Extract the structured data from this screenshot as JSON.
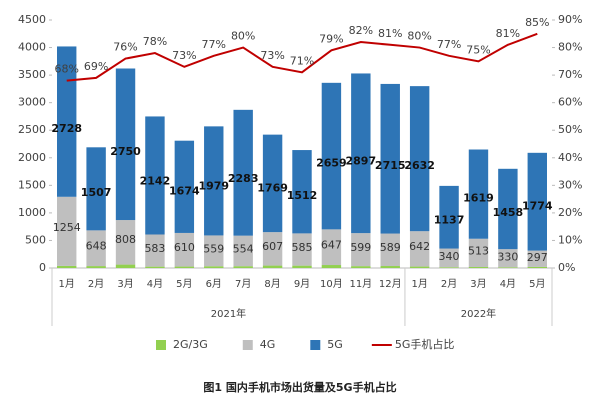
{
  "chart_data": {
    "type": "bar",
    "stacked": true,
    "caption": "图1  国内手机市场出货量及5G手机占比",
    "categories": [
      "1月",
      "2月",
      "3月",
      "4月",
      "5月",
      "6月",
      "7月",
      "8月",
      "9月",
      "10月",
      "11月",
      "12月",
      "1月",
      "2月",
      "3月",
      "4月",
      "5月"
    ],
    "groups": [
      {
        "label": "2021年",
        "span": 12
      },
      {
        "label": "2022年",
        "span": 5
      }
    ],
    "series": [
      {
        "name": "2G/3G",
        "color": "#92d050",
        "values": [
          38,
          35,
          62,
          25,
          26,
          32,
          33,
          44,
          43,
          54,
          34,
          36,
          26,
          13,
          18,
          12,
          19
        ]
      },
      {
        "name": "4G",
        "color": "#bfbfbf",
        "values": [
          1254,
          648,
          808,
          583,
          610,
          559,
          554,
          607,
          585,
          647,
          599,
          589,
          642,
          340,
          513,
          330,
          297
        ]
      },
      {
        "name": "5G",
        "color": "#2e75b6",
        "values": [
          2728,
          1507,
          2750,
          2142,
          1674,
          1979,
          2283,
          1769,
          1512,
          2659,
          2897,
          2715,
          2632,
          1137,
          1619,
          1458,
          1774
        ]
      },
      {
        "name": "5G手机占比",
        "type": "line",
        "axis": "y2",
        "color": "#c00000",
        "values": [
          68,
          69,
          76,
          78,
          73,
          77,
          80,
          73,
          71,
          79,
          82,
          81,
          80,
          77,
          75,
          81,
          85
        ],
        "value_labels": [
          "68%",
          "69%",
          "76%",
          "78%",
          "73%",
          "77%",
          "80%",
          "73%",
          "71%",
          "79%",
          "82%",
          "81%",
          "80%",
          "77%",
          "75%",
          "81%",
          "85%"
        ]
      }
    ],
    "ylim": [
      0,
      4500
    ],
    "yticks": [
      0,
      500,
      1000,
      1500,
      2000,
      2500,
      3000,
      3500,
      4000,
      4500
    ],
    "y2lim": [
      0,
      90
    ],
    "y2ticks": [
      {
        "value": 0,
        "label": "0%"
      },
      {
        "value": 10,
        "label": "10%"
      },
      {
        "value": 20,
        "label": "20%"
      },
      {
        "value": 30,
        "label": "30%"
      },
      {
        "value": 40,
        "label": "40%"
      },
      {
        "value": 50,
        "label": "50%"
      },
      {
        "value": 60,
        "label": "60%"
      },
      {
        "value": 70,
        "label": "70%"
      },
      {
        "value": 80,
        "label": "80%"
      },
      {
        "value": 90,
        "label": "90%"
      }
    ],
    "legend": "bottom"
  }
}
